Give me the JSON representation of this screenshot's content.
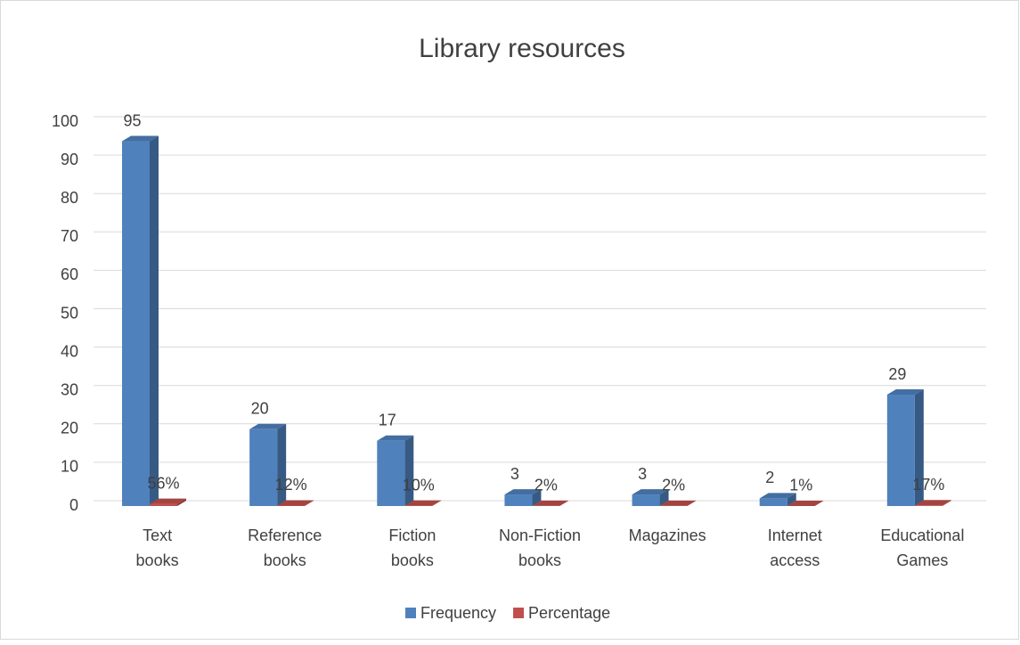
{
  "chart_data": {
    "type": "bar3d",
    "title": "Library resources",
    "categories": [
      "Text books",
      "Reference books",
      "Fiction books",
      "Non-Fiction books",
      "Magazines",
      "Internet access",
      "Educational Games"
    ],
    "series": [
      {
        "name": "Frequency",
        "color": "#4f81bd",
        "values": [
          95,
          20,
          17,
          3,
          3,
          2,
          29
        ]
      },
      {
        "name": "Percentage",
        "color": "#c0504d",
        "values": [
          0.56,
          0.12,
          0.1,
          0.02,
          0.02,
          0.01,
          0.17
        ],
        "value_labels": [
          "56%",
          "12%",
          "10%",
          "2%",
          "2%",
          "1%",
          "17%"
        ]
      }
    ],
    "ylim": [
      0,
      100
    ],
    "yticks": [
      0,
      10,
      20,
      30,
      40,
      50,
      60,
      70,
      80,
      90,
      100
    ],
    "grid": true,
    "legend": "bottom"
  }
}
